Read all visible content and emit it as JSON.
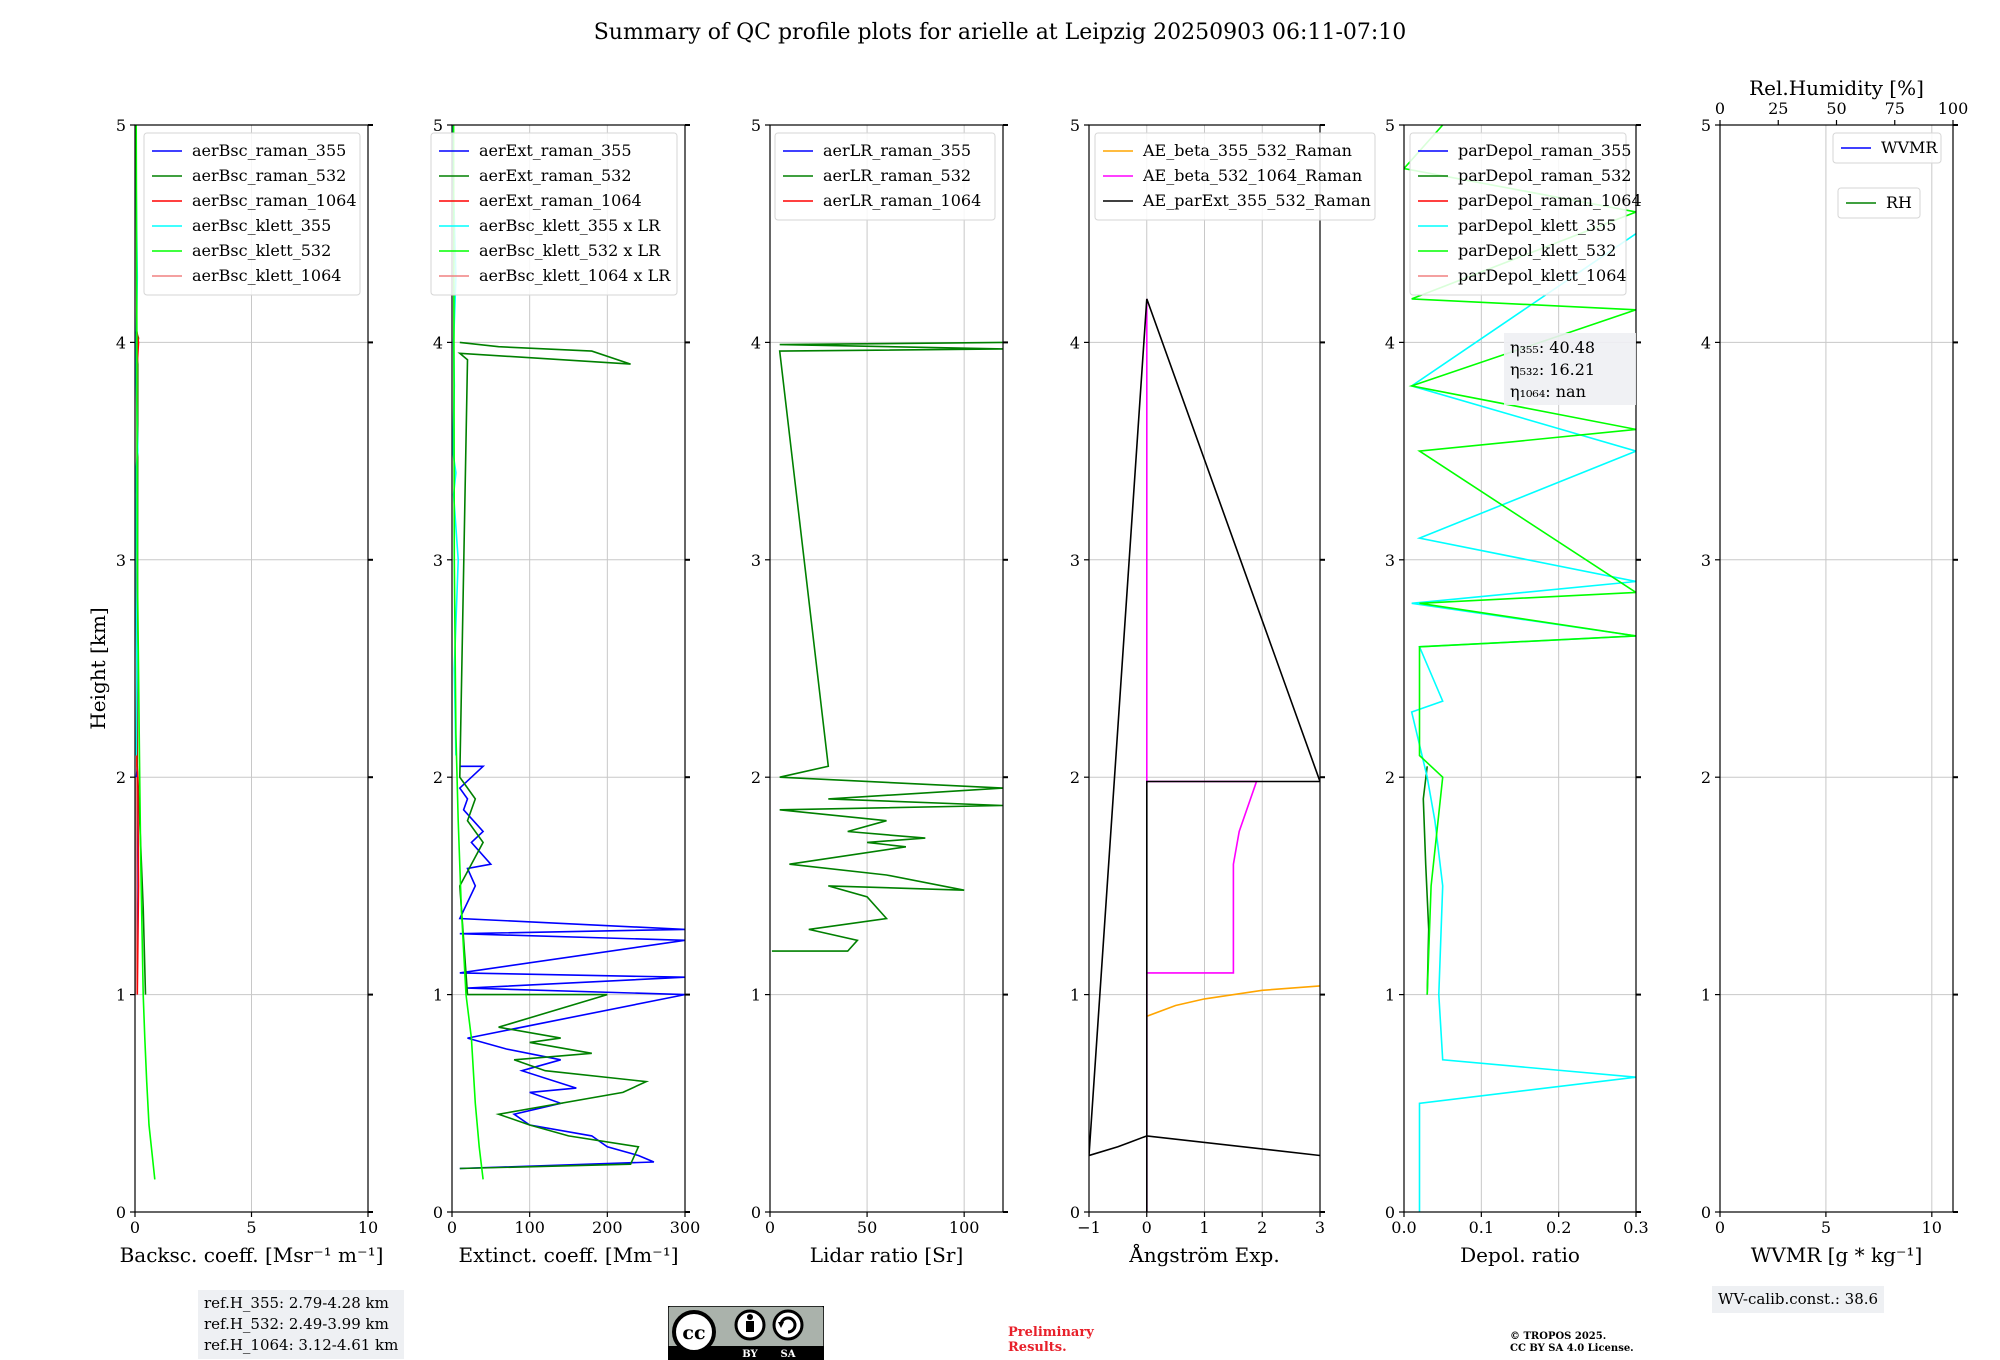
{
  "figure_title": "Summary of QC profile plots for arielle at Leipzig 20250903 06:11-07:10",
  "colors": {
    "blue": "#0000ff",
    "green": "#008000",
    "red": "#ff0000",
    "cyan": "#00ffff",
    "lime": "#00ff00",
    "lightred": "#f08080",
    "orange": "#ffa500",
    "magenta": "#ff00ff",
    "black": "#000000",
    "grid": "#c8c8c8"
  },
  "chart_data": [
    {
      "type": "line",
      "id": "bsc",
      "xlabel": "Backsc. coeff. [Msr⁻¹ m⁻¹]",
      "ylabel": "Height [km]",
      "xlim": [
        0,
        10
      ],
      "ylim": [
        0,
        5
      ],
      "xticks": [
        0,
        5,
        10
      ],
      "xtick_labels": [
        "0",
        "5",
        "10"
      ],
      "yticks": [
        0,
        1,
        2,
        3,
        4,
        5
      ],
      "ytick_labels": [
        "0",
        "1",
        "2",
        "3",
        "4",
        "5"
      ],
      "legend": "top-right",
      "series": [
        {
          "name": "aerBsc_raman_355",
          "color": "blue",
          "x": [
            0.05,
            0.08,
            0.06,
            0.1
          ],
          "y": [
            1.0,
            1.5,
            2.0,
            2.05
          ]
        },
        {
          "name": "aerBsc_raman_532",
          "color": "green",
          "x": [
            0.45,
            0.35,
            0.2,
            0.1,
            0.12,
            0.08,
            0.1,
            0.05,
            0.15,
            0.1
          ],
          "y": [
            1.0,
            1.4,
            1.8,
            2.05,
            3.9,
            3.95,
            4.0,
            4.05,
            4.02,
            3.98
          ]
        },
        {
          "name": "aerBsc_raman_1064",
          "color": "red",
          "x": [
            0.1,
            0.15,
            0.12,
            0.08,
            0.1,
            0.15,
            0.08
          ],
          "y": [
            1.0,
            1.5,
            2.0,
            2.05,
            3.9,
            4.0,
            4.05
          ]
        },
        {
          "name": "aerBsc_klett_355",
          "color": "cyan",
          "x": [
            0.05,
            0.08,
            0.02,
            0.06,
            0.03,
            0.12,
            0.04,
            0.1,
            0.05,
            0.02
          ],
          "y": [
            2.1,
            2.5,
            3.0,
            3.3,
            3.4,
            3.5,
            3.9,
            4.3,
            4.7,
            5.0
          ]
        },
        {
          "name": "aerBsc_klett_532",
          "color": "lime",
          "x": [
            0.85,
            0.75,
            0.6,
            0.5,
            0.42,
            0.35,
            0.3,
            0.25,
            0.2,
            0.15,
            0.1,
            0.08,
            0.05
          ],
          "y": [
            0.15,
            0.25,
            0.4,
            0.6,
            0.8,
            1.0,
            1.3,
            1.6,
            2.0,
            2.5,
            3.0,
            4.0,
            5.0
          ]
        },
        {
          "name": "aerBsc_klett_1064",
          "color": "lightred",
          "x": [
            0.05,
            0.06,
            0.05
          ],
          "y": [
            1.0,
            1.5,
            2.0
          ]
        }
      ]
    },
    {
      "type": "line",
      "id": "ext",
      "xlabel": "Extinct. coeff. [Mm⁻¹]",
      "xlim": [
        0,
        300
      ],
      "ylim": [
        0,
        5
      ],
      "xticks": [
        0,
        100,
        200,
        300
      ],
      "xtick_labels": [
        "0",
        "100",
        "200",
        "300"
      ],
      "yticks": [
        0,
        1,
        2,
        3,
        4,
        5
      ],
      "ytick_labels": [
        "0",
        "1",
        "2",
        "3",
        "4",
        "5"
      ],
      "legend": "top-right",
      "series": [
        {
          "name": "aerExt_raman_355",
          "color": "blue",
          "x": [
            10,
            260,
            240,
            200,
            180,
            100,
            80,
            140,
            100,
            160,
            90,
            140,
            70,
            20,
            300,
            20,
            300,
            10,
            300,
            10,
            300,
            10,
            30,
            20,
            50,
            25,
            40,
            15,
            20,
            10,
            40,
            10
          ],
          "y": [
            0.2,
            0.23,
            0.26,
            0.3,
            0.35,
            0.4,
            0.45,
            0.5,
            0.55,
            0.57,
            0.65,
            0.7,
            0.75,
            0.8,
            1.0,
            1.03,
            1.08,
            1.1,
            1.25,
            1.28,
            1.3,
            1.35,
            1.5,
            1.58,
            1.6,
            1.7,
            1.75,
            1.85,
            1.9,
            1.95,
            2.05,
            2.05
          ]
        },
        {
          "name": "aerExt_raman_532",
          "color": "green",
          "x": [
            10,
            230,
            240,
            150,
            100,
            60,
            220,
            250,
            120,
            80,
            180,
            100,
            140,
            60,
            200,
            20,
            10,
            40,
            20,
            30,
            10,
            20,
            10,
            230,
            180,
            60,
            10
          ],
          "y": [
            0.2,
            0.22,
            0.3,
            0.35,
            0.4,
            0.45,
            0.55,
            0.6,
            0.65,
            0.7,
            0.73,
            0.78,
            0.8,
            0.85,
            1.0,
            1.0,
            1.5,
            1.7,
            1.8,
            1.9,
            2.0,
            3.92,
            3.95,
            3.9,
            3.96,
            3.98,
            4.0
          ]
        },
        {
          "name": "aerExt_raman_1064",
          "color": "red",
          "x": [],
          "y": []
        },
        {
          "name": "aerBsc_klett_355 x LR",
          "color": "cyan",
          "x": [
            5,
            3,
            8,
            2,
            5,
            1,
            3,
            2,
            5,
            2,
            1
          ],
          "y": [
            2.1,
            2.5,
            3.0,
            3.3,
            3.4,
            3.5,
            3.8,
            4.0,
            4.3,
            4.7,
            5.0
          ]
        },
        {
          "name": "aerBsc_klett_532 x LR",
          "color": "lime",
          "x": [
            40,
            35,
            30,
            25,
            18,
            12,
            8,
            5,
            3,
            2
          ],
          "y": [
            0.15,
            0.3,
            0.5,
            0.8,
            1.0,
            1.4,
            1.8,
            2.2,
            3.0,
            5.0
          ]
        },
        {
          "name": "aerBsc_klett_1064 x LR",
          "color": "lightred",
          "x": [],
          "y": []
        }
      ]
    },
    {
      "type": "line",
      "id": "lr",
      "xlabel": "Lidar ratio [Sr]",
      "xlim": [
        0,
        120
      ],
      "ylim": [
        0,
        5
      ],
      "xticks": [
        0,
        50,
        100
      ],
      "xtick_labels": [
        "0",
        "50",
        "100"
      ],
      "yticks": [
        0,
        1,
        2,
        3,
        4,
        5
      ],
      "ytick_labels": [
        "0",
        "1",
        "2",
        "3",
        "4",
        "5"
      ],
      "legend": "top-right",
      "series": [
        {
          "name": "aerLR_raman_355",
          "color": "blue",
          "x": [],
          "y": []
        },
        {
          "name": "aerLR_raman_532",
          "color": "green",
          "x": [
            1,
            40,
            45,
            20,
            60,
            50,
            30,
            100,
            60,
            10,
            70,
            50,
            80,
            40,
            60,
            5,
            120,
            30,
            120,
            5,
            30,
            5,
            120,
            5,
            120
          ],
          "y": [
            1.2,
            1.2,
            1.25,
            1.3,
            1.35,
            1.45,
            1.5,
            1.48,
            1.55,
            1.6,
            1.68,
            1.7,
            1.72,
            1.75,
            1.8,
            1.85,
            1.87,
            1.9,
            1.95,
            2.0,
            2.05,
            3.96,
            3.97,
            3.99,
            4.0
          ]
        },
        {
          "name": "aerLR_raman_1064",
          "color": "red",
          "x": [],
          "y": []
        }
      ]
    },
    {
      "type": "line",
      "id": "ae",
      "xlabel": "Ångström Exp.",
      "xlim": [
        -1,
        3
      ],
      "ylim": [
        0,
        5
      ],
      "xticks": [
        -1,
        0,
        1,
        2,
        3
      ],
      "xtick_labels": [
        "−1",
        "0",
        "1",
        "2",
        "3"
      ],
      "yticks": [
        0,
        1,
        2,
        3,
        4,
        5
      ],
      "ytick_labels": [
        "0",
        "1",
        "2",
        "3",
        "4",
        "5"
      ],
      "legend": "top-left",
      "series": [
        {
          "name": "AE_beta_355_532_Raman",
          "color": "orange",
          "x": [
            0,
            0.5,
            1,
            2,
            3
          ],
          "y": [
            0.9,
            0.95,
            0.98,
            1.02,
            1.04
          ]
        },
        {
          "name": "AE_beta_532_1064_Raman",
          "color": "magenta",
          "x": [
            0,
            0,
            1.5,
            1.5,
            1.6,
            1.9,
            0,
            0
          ],
          "y": [
            0.0,
            1.1,
            1.1,
            1.6,
            1.75,
            1.98,
            1.98,
            4.2
          ]
        },
        {
          "name": "AE_parExt_355_532_Raman",
          "color": "black",
          "x": [
            0,
            0,
            3,
            0,
            -1,
            -0.5,
            0,
            3
          ],
          "y": [
            0.0,
            1.98,
            1.98,
            4.2,
            0.26,
            0.3,
            0.35,
            0.26
          ]
        }
      ]
    },
    {
      "type": "line",
      "id": "depol",
      "xlabel": "Depol. ratio",
      "xlim": [
        0,
        0.3
      ],
      "ylim": [
        0,
        5
      ],
      "xticks": [
        0,
        0.1,
        0.2,
        0.3
      ],
      "xtick_labels": [
        "0.0",
        "0.1",
        "0.2",
        "0.3"
      ],
      "yticks": [
        0,
        1,
        2,
        3,
        4,
        5
      ],
      "ytick_labels": [
        "0",
        "1",
        "2",
        "3",
        "4",
        "5"
      ],
      "legend": "top-left",
      "annotation": [
        "η₃₅₅: 40.48",
        "η₅₃₂: 16.21",
        "η₁₀₆₄: nan"
      ],
      "series": [
        {
          "name": "parDepol_raman_355",
          "color": "blue",
          "x": [],
          "y": []
        },
        {
          "name": "parDepol_raman_532",
          "color": "green",
          "x": [
            0.03,
            0.032,
            0.028,
            0.025,
            0.03
          ],
          "y": [
            1.0,
            1.3,
            1.6,
            1.9,
            2.05
          ]
        },
        {
          "name": "parDepol_raman_1064",
          "color": "red",
          "x": [],
          "y": []
        },
        {
          "name": "parDepol_klett_355",
          "color": "cyan",
          "x": [
            0.02,
            0.02,
            0.3,
            0.05,
            0.045,
            0.05,
            0.04,
            0.03,
            0.01,
            0.05,
            0.02,
            0.3,
            0.01,
            0.3,
            0.02,
            0.3,
            0.01,
            0.3
          ],
          "y": [
            0.0,
            0.5,
            0.62,
            0.7,
            1.0,
            1.5,
            1.8,
            2.0,
            2.3,
            2.35,
            2.6,
            2.65,
            2.8,
            2.9,
            3.1,
            3.5,
            3.8,
            4.5
          ]
        },
        {
          "name": "parDepol_klett_532",
          "color": "lime",
          "x": [
            0.03,
            0.035,
            0.05,
            0.02,
            0.02,
            0.3,
            0.02,
            0.3,
            0.02,
            0.3,
            0.01,
            0.3,
            0.01,
            0.3,
            0.0,
            0.05
          ],
          "y": [
            1.0,
            1.5,
            2.0,
            2.1,
            2.6,
            2.65,
            2.8,
            2.85,
            3.5,
            3.6,
            3.8,
            4.15,
            4.2,
            4.6,
            4.8,
            5.0
          ]
        },
        {
          "name": "parDepol_klett_1064",
          "color": "lightred",
          "x": [],
          "y": []
        }
      ]
    },
    {
      "type": "line",
      "id": "wv",
      "xlabel": "WVMR [g * kg⁻¹]",
      "xlim": [
        0,
        11
      ],
      "ylim": [
        0,
        5
      ],
      "xticks": [
        0,
        5,
        10
      ],
      "xtick_labels": [
        "0",
        "5",
        "10"
      ],
      "yticks": [
        0,
        1,
        2,
        3,
        4,
        5
      ],
      "ytick_labels": [
        "0",
        "1",
        "2",
        "3",
        "4",
        "5"
      ],
      "top_xlabel": "Rel.Humidity [%]",
      "top_xlim": [
        0,
        100
      ],
      "top_xticks": [
        0,
        25,
        50,
        75,
        100
      ],
      "top_xtick_labels": [
        "0",
        "25",
        "50",
        "75",
        "100"
      ],
      "legend": "top-right",
      "series": [
        {
          "name": "WVMR",
          "color": "blue",
          "x": [],
          "y": []
        },
        {
          "name": "RH",
          "color": "green",
          "x": [],
          "y": []
        }
      ]
    }
  ],
  "info": {
    "refh": [
      "ref.H_355: 2.79-4.28 km",
      "ref.H_532: 2.49-3.99 km",
      "ref.H_1064: 3.12-4.61 km"
    ],
    "wv_calib": "WV-calib.const.: 38.6",
    "preliminary": [
      "Preliminary",
      "Results."
    ],
    "copyright": [
      "© TROPOS 2025.",
      "CC BY SA 4.0 License."
    ],
    "license_badge": {
      "cc": "cc",
      "by": "BY",
      "sa": "SA"
    }
  }
}
